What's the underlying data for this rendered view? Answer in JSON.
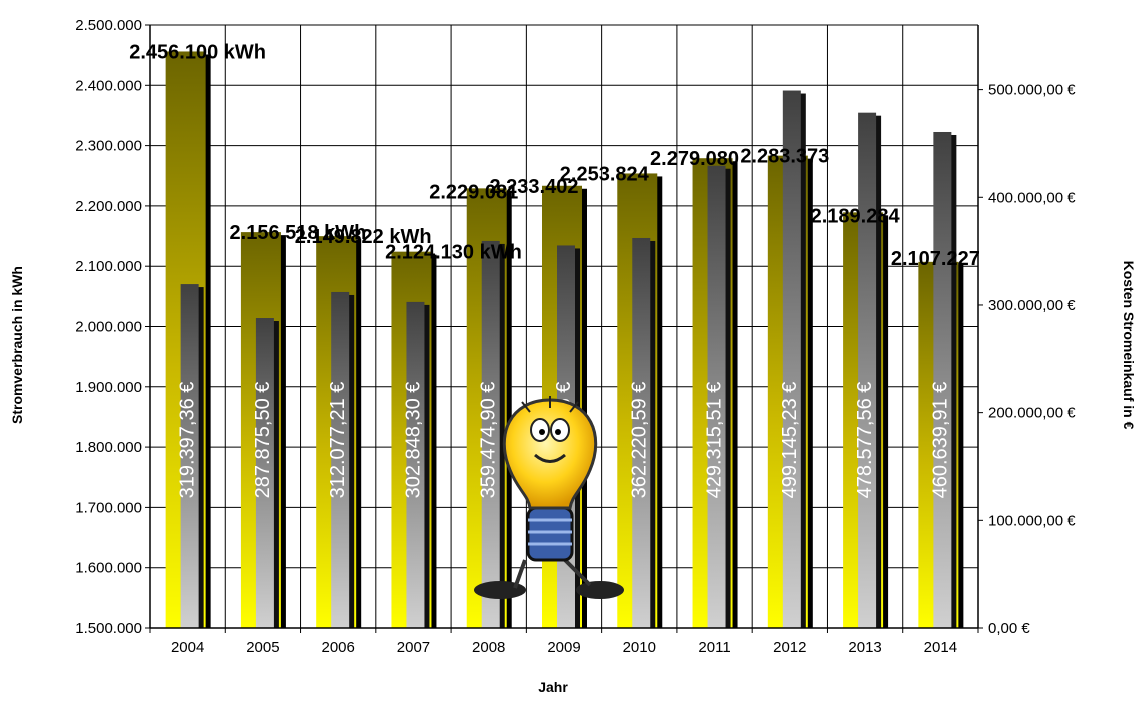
{
  "chart_data": {
    "type": "bar",
    "categories": [
      "2004",
      "2005",
      "2006",
      "2007",
      "2008",
      "2009",
      "2010",
      "2011",
      "2012",
      "2013",
      "2014"
    ],
    "xlabel": "Jahr",
    "ylabel": "Stromverbrauch in kWh",
    "y2label": "Kosten Stromeinkauf in €",
    "ylim": [
      1500000,
      2500000
    ],
    "y2lim": [
      0,
      560000
    ],
    "y_ticks": [
      "1.500.000",
      "1.600.000",
      "1.700.000",
      "1.800.000",
      "1.900.000",
      "2.000.000",
      "2.100.000",
      "2.200.000",
      "2.300.000",
      "2.400.000",
      "2.500.000"
    ],
    "y2_ticks": [
      "0,00 €",
      "100.000,00 €",
      "200.000,00 €",
      "300.000,00 €",
      "400.000,00 €",
      "500.000,00 €"
    ],
    "grid": true,
    "series": [
      {
        "axis": "left",
        "values": [
          2456100,
          2156518,
          2149822,
          2124130,
          2229081,
          2233402,
          2253824,
          2279080,
          2283373,
          2189284,
          2107227
        ],
        "labels": [
          "2.456.100 kWh",
          "2.156.518 kWh",
          "2.149.822 kWh",
          "2.124.130 kWh",
          "2.229.081",
          "2.233.402",
          "2.253.824",
          "2.279.080",
          "2.283.373",
          "2.189.284",
          "2.107.227"
        ],
        "color_top": "#6b6400",
        "color_bottom": "#ffff00"
      },
      {
        "axis": "right",
        "values": [
          319397.36,
          287875.5,
          312077.21,
          302848.3,
          359474.9,
          355268.56,
          362220.59,
          429315.51,
          499145.23,
          478577.56,
          460639.91
        ],
        "labels": [
          "319.397,36 €",
          "287.875,50 €",
          "312.077,21 €",
          "302.848,30 €",
          "359.474,90 €",
          "355.268,56 €",
          "362.220,59 €",
          "429.315,51 €",
          "499.145,23 €",
          "478.577,56 €",
          "460.639,91 €"
        ],
        "color_top": "#4a4a4a",
        "color_bottom": "#c8c8c8"
      }
    ],
    "mascot": "lightbulb-mascot"
  }
}
